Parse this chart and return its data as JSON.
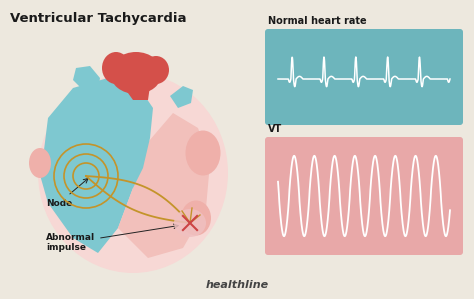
{
  "bg_color": "#ede8de",
  "title": "Ventricular Tachycardia",
  "title_color": "#1a1a1a",
  "title_fontsize": 9.5,
  "normal_label": "Normal heart rate",
  "vt_label": "VT",
  "ecg_box_color_normal": "#6db5bc",
  "ecg_box_color_vt": "#e8a8a8",
  "ecg_line_color": "#ffffff",
  "healthline_text": "healthline",
  "healthline_color": "#444444",
  "node_label": "Node",
  "abnormal_label": "Abnormal\nimpulse",
  "label_color": "#1a1a1a",
  "heart_blue": "#7ec8d0",
  "heart_red": "#d4504a",
  "heart_pink": "#f2c0bb",
  "heart_light_pink": "#f7d8d5",
  "heart_deep_pink": "#efb0aa",
  "conduction_color": "#c4942a",
  "annotation_color": "#222222",
  "impulse_glow": "#f0c0c0",
  "impulse_red": "#cc4444"
}
